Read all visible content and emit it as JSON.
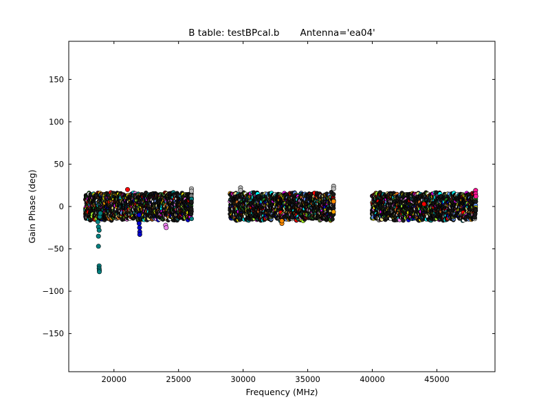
{
  "figure": {
    "title": "B table: testBPcal.b       Antenna='ea04'"
  },
  "chart_data": {
    "type": "scatter",
    "title": "B table: testBPcal.b       Antenna='ea04'",
    "xlabel": "Frequency (MHz)",
    "ylabel": "Gain Phase (deg)",
    "xlim": [
      16500,
      49500
    ],
    "ylim": [
      -195,
      195
    ],
    "x_ticks": [
      20000,
      25000,
      30000,
      35000,
      40000,
      45000
    ],
    "y_ticks": [
      -150,
      -100,
      -50,
      0,
      50,
      100,
      150
    ],
    "x_tick_labels": [
      "20000",
      "25000",
      "30000",
      "35000",
      "40000",
      "45000"
    ],
    "y_tick_labels": [
      "−150",
      "−100",
      "−50",
      "0",
      "50",
      "100",
      "150"
    ],
    "grid": false,
    "legend": "none",
    "marker": "circle",
    "frequency_bands_mhz": [
      [
        17800,
        26000
      ],
      [
        29000,
        37000
      ],
      [
        40000,
        48000
      ]
    ],
    "typical_phase_range_deg": [
      -15,
      15
    ],
    "series": [
      {
        "color": "#008080",
        "points": [
          [
            18750,
            -18
          ],
          [
            18800,
            -24
          ],
          [
            18850,
            -28
          ],
          [
            18800,
            -35
          ],
          [
            18800,
            -47
          ],
          [
            18850,
            -70
          ],
          [
            18850,
            -73
          ],
          [
            18870,
            -75
          ],
          [
            18870,
            -77
          ],
          [
            18900,
            -12
          ],
          [
            18950,
            -8
          ]
        ]
      },
      {
        "color": "#0000cc",
        "points": [
          [
            21950,
            -20
          ],
          [
            21980,
            -25
          ],
          [
            22000,
            -30
          ],
          [
            22000,
            -33
          ],
          [
            21950,
            -10
          ]
        ]
      },
      {
        "color": "#ee82ee",
        "points": [
          [
            24000,
            -22
          ],
          [
            24050,
            -25
          ]
        ]
      },
      {
        "color": "#ff1493",
        "points": [
          [
            48000,
            19
          ],
          [
            48000,
            15
          ],
          [
            48020,
            12
          ]
        ]
      },
      {
        "color": "#bbbbbb",
        "points": [
          [
            26000,
            21
          ],
          [
            26000,
            18
          ],
          [
            29800,
            22
          ],
          [
            29800,
            19
          ],
          [
            37000,
            24
          ],
          [
            37000,
            21
          ]
        ]
      },
      {
        "color": "#ff8c00",
        "points": [
          [
            33000,
            -20
          ],
          [
            33000,
            -17
          ],
          [
            37000,
            6
          ]
        ]
      },
      {
        "color": "#ff0000",
        "points": [
          [
            21050,
            20
          ],
          [
            44000,
            3
          ]
        ]
      }
    ],
    "band_palette": [
      "#008080",
      "#111111",
      "#1a1a1a",
      "#0000cc",
      "#228b22",
      "#ff0000",
      "#ffff00",
      "#ee82ee",
      "#ffa500",
      "#00ffff",
      "#8b4513",
      "#adff2f",
      "#ff00ff",
      "#ffffff",
      "#808080",
      "#556b2f",
      "#d2691e",
      "#6495ed",
      "#f0e68c",
      "#800000"
    ]
  }
}
